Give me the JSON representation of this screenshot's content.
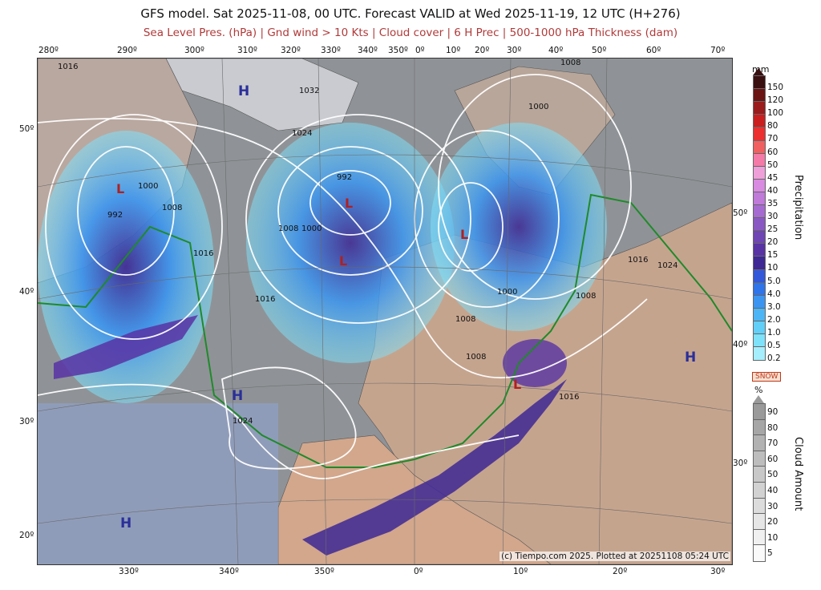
{
  "header": {
    "title": "GFS model. Sat 2025-11-08, 00 UTC. Forecast VALID at Wed 2025-11-19, 12 UTC (H+276)",
    "subtitle": "Sea Level Pres. (hPa) | Gnd wind > 10 Kts | Cloud cover | 6 H Prec | 500-1000 hPa Thickness (dam)"
  },
  "top_lon_labels": [
    "280º",
    "290º",
    "300º",
    "310º",
    "320º",
    "330º",
    "340º",
    "350º",
    "0º",
    "10º",
    "20º",
    "30º",
    "40º",
    "50º",
    "60º",
    "70º"
  ],
  "bottom_lon_labels": [
    "330º",
    "340º",
    "350º",
    "0º",
    "10º",
    "20º",
    "30º"
  ],
  "left_lat_labels": [
    "50º",
    "40º",
    "30º",
    "20º"
  ],
  "right_lat_labels": [
    "50º",
    "40º",
    "30º"
  ],
  "pressure_centers": {
    "highs": [
      "H",
      "H",
      "H",
      "H"
    ],
    "lows": [
      "L",
      "L",
      "L",
      "L",
      "L"
    ]
  },
  "isobar_labels": [
    "1016",
    "1032",
    "1024",
    "1008",
    "1000",
    "992",
    "1008",
    "1000",
    "1016",
    "1008",
    "1024",
    "1016",
    "1000",
    "1008",
    "1008",
    "1016",
    "1024",
    "992",
    "1000",
    "1008",
    "1016"
  ],
  "credit": "(c) Tiempo.com 2025. Plotted at 20251108 05:24 UTC",
  "legend_precip": {
    "unit": "mm",
    "title": "Precipitation",
    "ticks": [
      "150",
      "120",
      "100",
      "80",
      "70",
      "60",
      "50",
      "45",
      "40",
      "35",
      "30",
      "25",
      "20",
      "15",
      "10",
      "5.0",
      "4.0",
      "3.0",
      "2.0",
      "1.0",
      "0.5",
      "0.2"
    ],
    "colors": [
      "#3a0f10",
      "#6b1414",
      "#9a1c1c",
      "#c91f1f",
      "#ec3030",
      "#f06060",
      "#f47ba8",
      "#ee9fd8",
      "#d88be0",
      "#c07ad8",
      "#a66bd0",
      "#8a58c2",
      "#6f45b4",
      "#5833a4",
      "#3d2894",
      "#3257d8",
      "#2f74e8",
      "#3b95f0",
      "#4cb5f5",
      "#62cff8",
      "#7fe2fb",
      "#a6eefd"
    ]
  },
  "legend_snow": "SNOW",
  "legend_cloud": {
    "unit": "%",
    "title": "Cloud Amount",
    "ticks": [
      "90",
      "80",
      "70",
      "60",
      "50",
      "40",
      "30",
      "20",
      "10",
      "5"
    ],
    "colors": [
      "#9a9a9a",
      "#a6a6a6",
      "#b2b2b2",
      "#bdbdbd",
      "#c8c8c8",
      "#d2d2d2",
      "#dcdcdc",
      "#e6e6e6",
      "#f0f0f0",
      "#fafafa"
    ]
  }
}
